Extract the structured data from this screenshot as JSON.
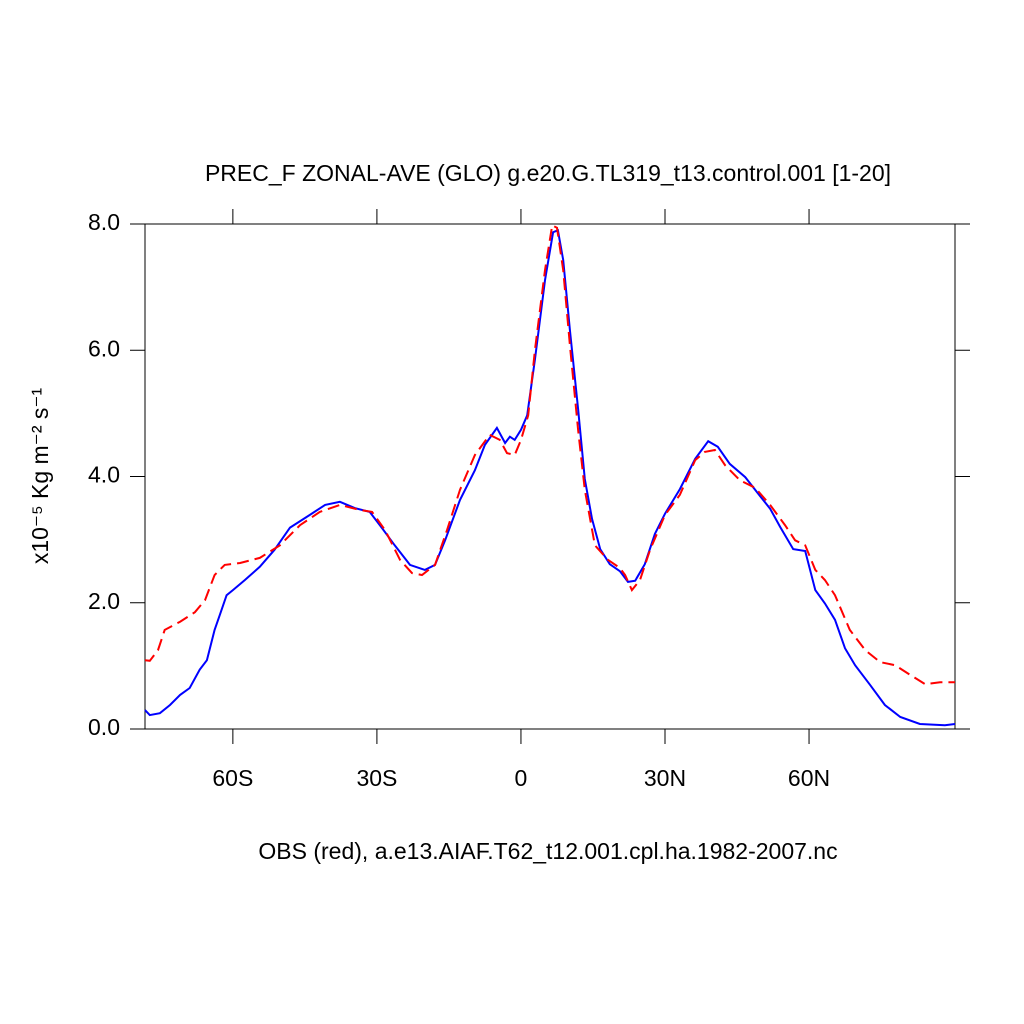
{
  "chart_data": {
    "type": "line",
    "title": "PREC_F ZONAL-AVE (GLO) g.e20.G.TL319_t13.control.001 [1-20]",
    "ylabel": "x10⁻⁵ Kg m⁻² s⁻¹",
    "xlabel": "OBS (red), a.e13.AIAF.T62_t12.001.cpl.ha.1982-2007.nc",
    "xlim": [
      -78.3,
      90.4
    ],
    "ylim": [
      0,
      8
    ],
    "xticks": [
      {
        "value": -60,
        "label": "60S"
      },
      {
        "value": -30,
        "label": "30S"
      },
      0,
      {
        "value": 30,
        "label": "30N"
      },
      {
        "value": 60,
        "label": "60N"
      }
    ],
    "yticks": [
      {
        "value": 0,
        "label": "0.0"
      },
      {
        "value": 2,
        "label": "2.0"
      },
      {
        "value": 4,
        "label": "4.0"
      },
      {
        "value": 6,
        "label": "6.0"
      },
      {
        "value": 8,
        "label": "8.0"
      }
    ],
    "series": [
      {
        "color": "#0000ff",
        "dash": "solid",
        "x": [
          -78.3,
          -77.3,
          -75.2,
          -73.1,
          -71.0,
          -69.0,
          -66.9,
          -65.4,
          -63.8,
          -62.7,
          -61.3,
          -60.0,
          -57.5,
          -54.4,
          -51.3,
          -48.1,
          -44.0,
          -40.8,
          -37.7,
          -34.6,
          -31.5,
          -29.4,
          -26.3,
          -23.1,
          -20.0,
          -17.9,
          -15.8,
          -12.7,
          -9.6,
          -7.5,
          -5.0,
          -3.3,
          -2.3,
          -1.3,
          0,
          1.3,
          2.9,
          5.0,
          6.7,
          7.7,
          8.8,
          10.2,
          11.9,
          13.3,
          14.8,
          16.5,
          18.5,
          20.6,
          22.3,
          23.8,
          25.8,
          27.9,
          30.0,
          33.1,
          36.3,
          39.0,
          41.0,
          43.5,
          46.7,
          49.8,
          51.9,
          54.0,
          56.7,
          59.2,
          61.3,
          63.3,
          65.4,
          67.5,
          69.6,
          72.7,
          75.8,
          79.0,
          83.1,
          88.3,
          90.4
        ],
        "values": [
          0.3,
          0.22,
          0.25,
          0.38,
          0.54,
          0.65,
          0.94,
          1.09,
          1.57,
          1.81,
          2.12,
          2.2,
          2.36,
          2.57,
          2.84,
          3.19,
          3.39,
          3.55,
          3.6,
          3.5,
          3.44,
          3.23,
          2.91,
          2.6,
          2.52,
          2.6,
          2.99,
          3.63,
          4.1,
          4.5,
          4.77,
          4.53,
          4.63,
          4.58,
          4.74,
          4.97,
          5.85,
          7.11,
          7.87,
          7.9,
          7.43,
          6.32,
          5.07,
          3.96,
          3.33,
          2.85,
          2.61,
          2.5,
          2.33,
          2.35,
          2.61,
          3.09,
          3.41,
          3.8,
          4.28,
          4.56,
          4.47,
          4.2,
          3.99,
          3.69,
          3.49,
          3.2,
          2.85,
          2.82,
          2.2,
          1.99,
          1.73,
          1.28,
          1.01,
          0.7,
          0.38,
          0.19,
          0.08,
          0.06,
          0.08
        ]
      },
      {
        "color": "#ff0000",
        "dash": "dashed",
        "x": [
          -78.3,
          -77.3,
          -75.6,
          -74.2,
          -71.0,
          -67.9,
          -65.8,
          -63.8,
          -61.7,
          -58.5,
          -54.4,
          -50.2,
          -46.0,
          -41.9,
          -37.7,
          -33.5,
          -31.0,
          -28.3,
          -25.2,
          -22.7,
          -20.6,
          -17.9,
          -15.4,
          -12.7,
          -9.6,
          -6.5,
          -4.4,
          -2.9,
          -1.3,
          0,
          1.5,
          2.9,
          5.0,
          6.5,
          7.5,
          8.8,
          10.2,
          11.9,
          13.3,
          15.4,
          18.1,
          20.6,
          21.7,
          23.1,
          24.8,
          26.9,
          30.0,
          33.1,
          36.3,
          38.3,
          40.4,
          42.5,
          45.6,
          48.8,
          51.9,
          55.0,
          57.1,
          59.2,
          61.3,
          63.3,
          65.4,
          68.5,
          71.7,
          74.8,
          77.9,
          81.0,
          84.2,
          87.3,
          90.4
        ],
        "values": [
          1.09,
          1.08,
          1.25,
          1.57,
          1.7,
          1.85,
          2.04,
          2.44,
          2.6,
          2.63,
          2.71,
          2.91,
          3.23,
          3.44,
          3.55,
          3.47,
          3.44,
          3.15,
          2.68,
          2.47,
          2.44,
          2.6,
          3.15,
          3.79,
          4.34,
          4.66,
          4.58,
          4.37,
          4.34,
          4.58,
          4.97,
          6.0,
          7.27,
          7.98,
          7.94,
          7.27,
          6.08,
          4.74,
          3.79,
          2.91,
          2.68,
          2.55,
          2.44,
          2.2,
          2.36,
          2.84,
          3.39,
          3.71,
          4.26,
          4.39,
          4.42,
          4.18,
          3.94,
          3.82,
          3.55,
          3.23,
          2.99,
          2.91,
          2.52,
          2.36,
          2.12,
          1.57,
          1.25,
          1.06,
          1.01,
          0.86,
          0.71,
          0.74,
          0.74
        ]
      }
    ]
  }
}
